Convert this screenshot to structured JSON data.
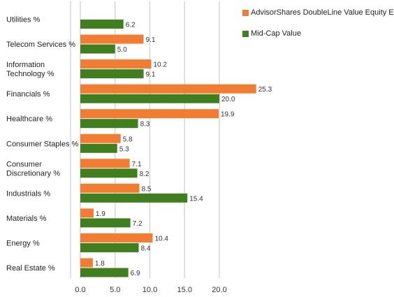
{
  "chart_data": {
    "type": "bar",
    "orientation": "horizontal",
    "categories": [
      [
        "Utilities %"
      ],
      [
        "Telecom Services %"
      ],
      [
        "Information",
        "Technology %"
      ],
      [
        "Financials %"
      ],
      [
        "Healthcare %"
      ],
      [
        "Consumer Staples %"
      ],
      [
        "Consumer",
        "Discretionary %"
      ],
      [
        "Industrials %"
      ],
      [
        "Materials %"
      ],
      [
        "Energy %"
      ],
      [
        "Real Estate %"
      ]
    ],
    "series": [
      {
        "name": "AdvisorShares DoubleLine Value Equity ETF",
        "color": "#f47c30",
        "values": [
          null,
          9.1,
          10.2,
          25.3,
          19.9,
          5.8,
          7.1,
          8.5,
          1.9,
          10.4,
          1.8
        ],
        "labels": [
          "",
          "9.1",
          "10.2",
          "25.3",
          "19.9",
          "5.8",
          "7.1",
          "8.5",
          "1.9",
          "10.4",
          "1.8"
        ]
      },
      {
        "name": "Mid-Cap Value",
        "color": "#3f7f1e",
        "values": [
          6.2,
          5.0,
          9.1,
          20.0,
          8.3,
          5.3,
          8.2,
          15.4,
          7.2,
          8.4,
          6.9
        ],
        "labels": [
          "6.2",
          "5.0",
          "9.1",
          "20.0",
          "8.3",
          "5.3",
          "8.2",
          "15.4",
          "7.2",
          "8.4",
          "6.9"
        ]
      }
    ],
    "x_ticks": [
      "0.0",
      "5.0",
      "10.0",
      "15.0",
      "20.0"
    ],
    "xlim": [
      0,
      25
    ],
    "grid": true,
    "legend_position": "top-right"
  }
}
